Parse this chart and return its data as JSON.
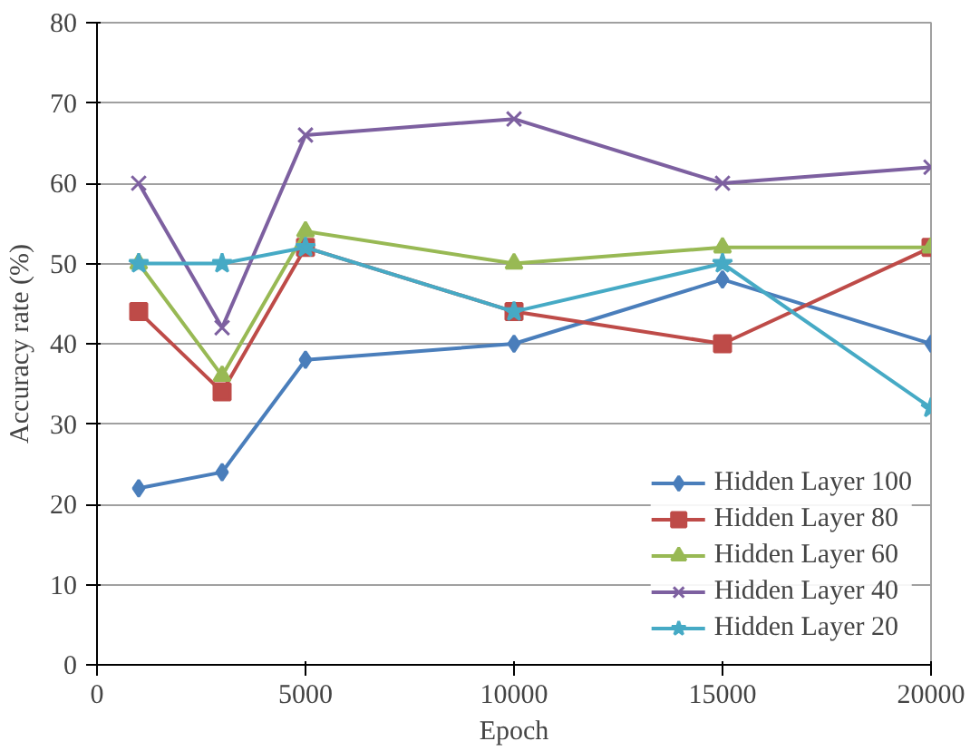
{
  "chart_data": {
    "type": "line",
    "xlabel": "Epoch",
    "ylabel": "Accuracy rate (%)",
    "xlim": [
      0,
      20000
    ],
    "xticks": [
      0,
      5000,
      10000,
      15000,
      20000
    ],
    "ylim": [
      0,
      80
    ],
    "yticks": [
      0,
      10,
      20,
      30,
      40,
      50,
      60,
      70,
      80
    ],
    "grid": "y",
    "legend": "bottom right",
    "line_style": "solid",
    "series": [
      {
        "name": "Hidden Layer 100",
        "color": "#4a7ebb",
        "marker": "diamond",
        "x": [
          1000,
          3000,
          5000,
          10000,
          15000,
          20000
        ],
        "values": [
          22,
          24,
          38,
          40,
          48,
          40
        ]
      },
      {
        "name": "Hidden Layer 80",
        "color": "#be4b48",
        "marker": "square",
        "x": [
          1000,
          3000,
          5000,
          10000,
          15000,
          20000
        ],
        "values": [
          44,
          34,
          52,
          44,
          40,
          52
        ]
      },
      {
        "name": "Hidden Layer 60",
        "color": "#98b954",
        "marker": "triangle",
        "x": [
          1000,
          3000,
          5000,
          10000,
          15000,
          20000
        ],
        "values": [
          50,
          36,
          54,
          50,
          52,
          52
        ]
      },
      {
        "name": "Hidden Layer 40",
        "color": "#7d60a0",
        "marker": "cross",
        "x": [
          1000,
          3000,
          5000,
          10000,
          15000,
          20000
        ],
        "values": [
          60,
          42,
          66,
          68,
          60,
          62
        ]
      },
      {
        "name": "Hidden Layer 20",
        "color": "#46aac5",
        "marker": "star",
        "x": [
          1000,
          3000,
          5000,
          10000,
          15000,
          20000
        ],
        "values": [
          50,
          50,
          52,
          44,
          50,
          32
        ]
      }
    ]
  }
}
